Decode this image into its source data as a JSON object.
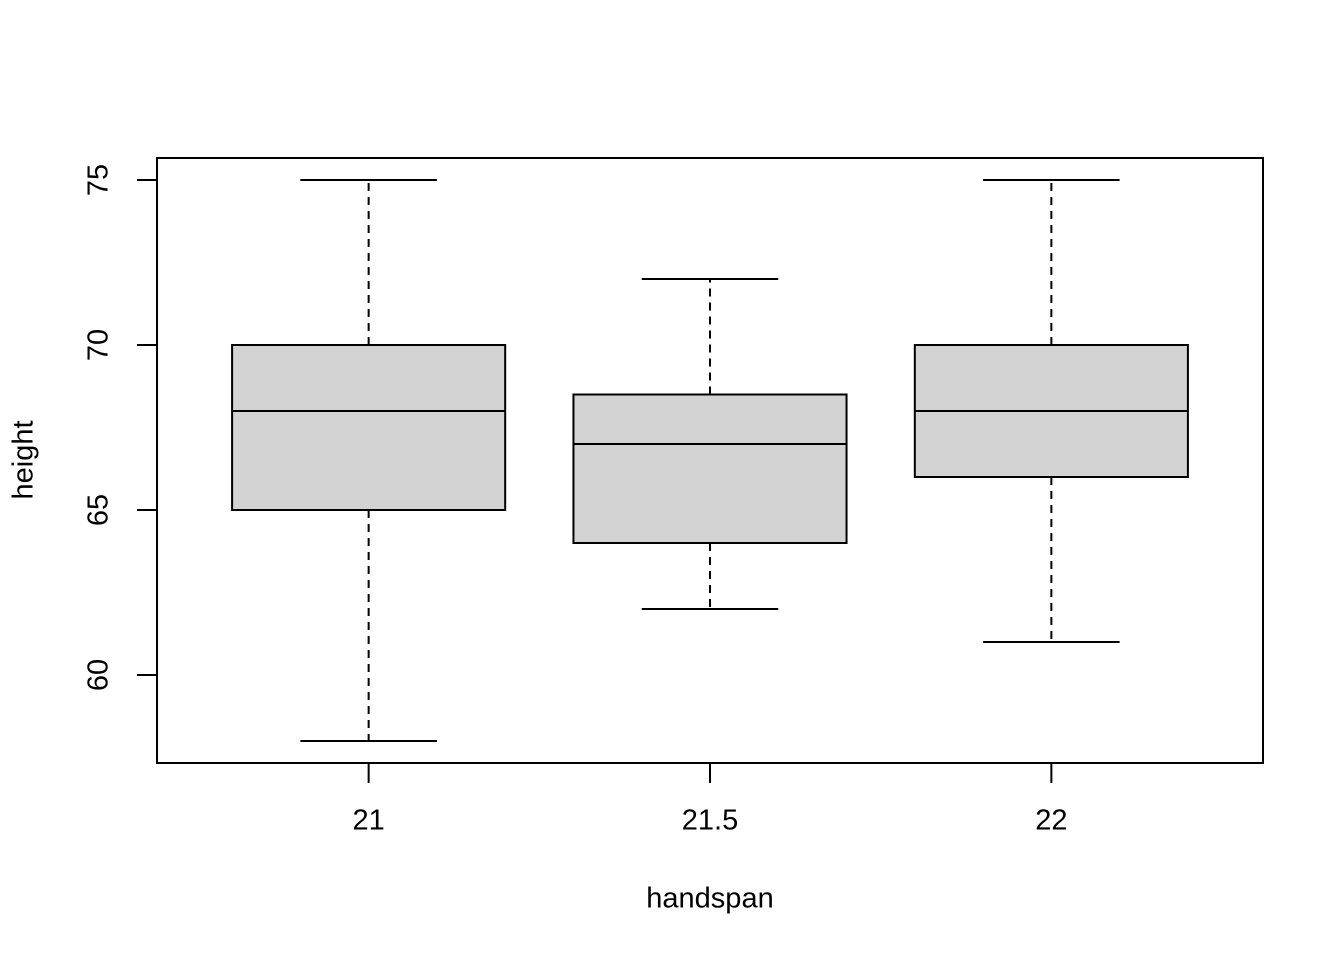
{
  "chart_data": {
    "type": "box",
    "xlabel": "handspan",
    "ylabel": "height",
    "categories": [
      "21",
      "21.5",
      "22"
    ],
    "whisker_low": [
      58,
      62,
      61
    ],
    "q1": [
      65,
      64,
      66
    ],
    "median": [
      68,
      67,
      68
    ],
    "q3": [
      70,
      68.5,
      70
    ],
    "whisker_high": [
      75,
      72,
      75
    ],
    "color": "#d3d3d3",
    "ylim": [
      57.333,
      75.667
    ],
    "yticks": [
      60,
      65,
      70,
      75
    ],
    "grid": false
  }
}
